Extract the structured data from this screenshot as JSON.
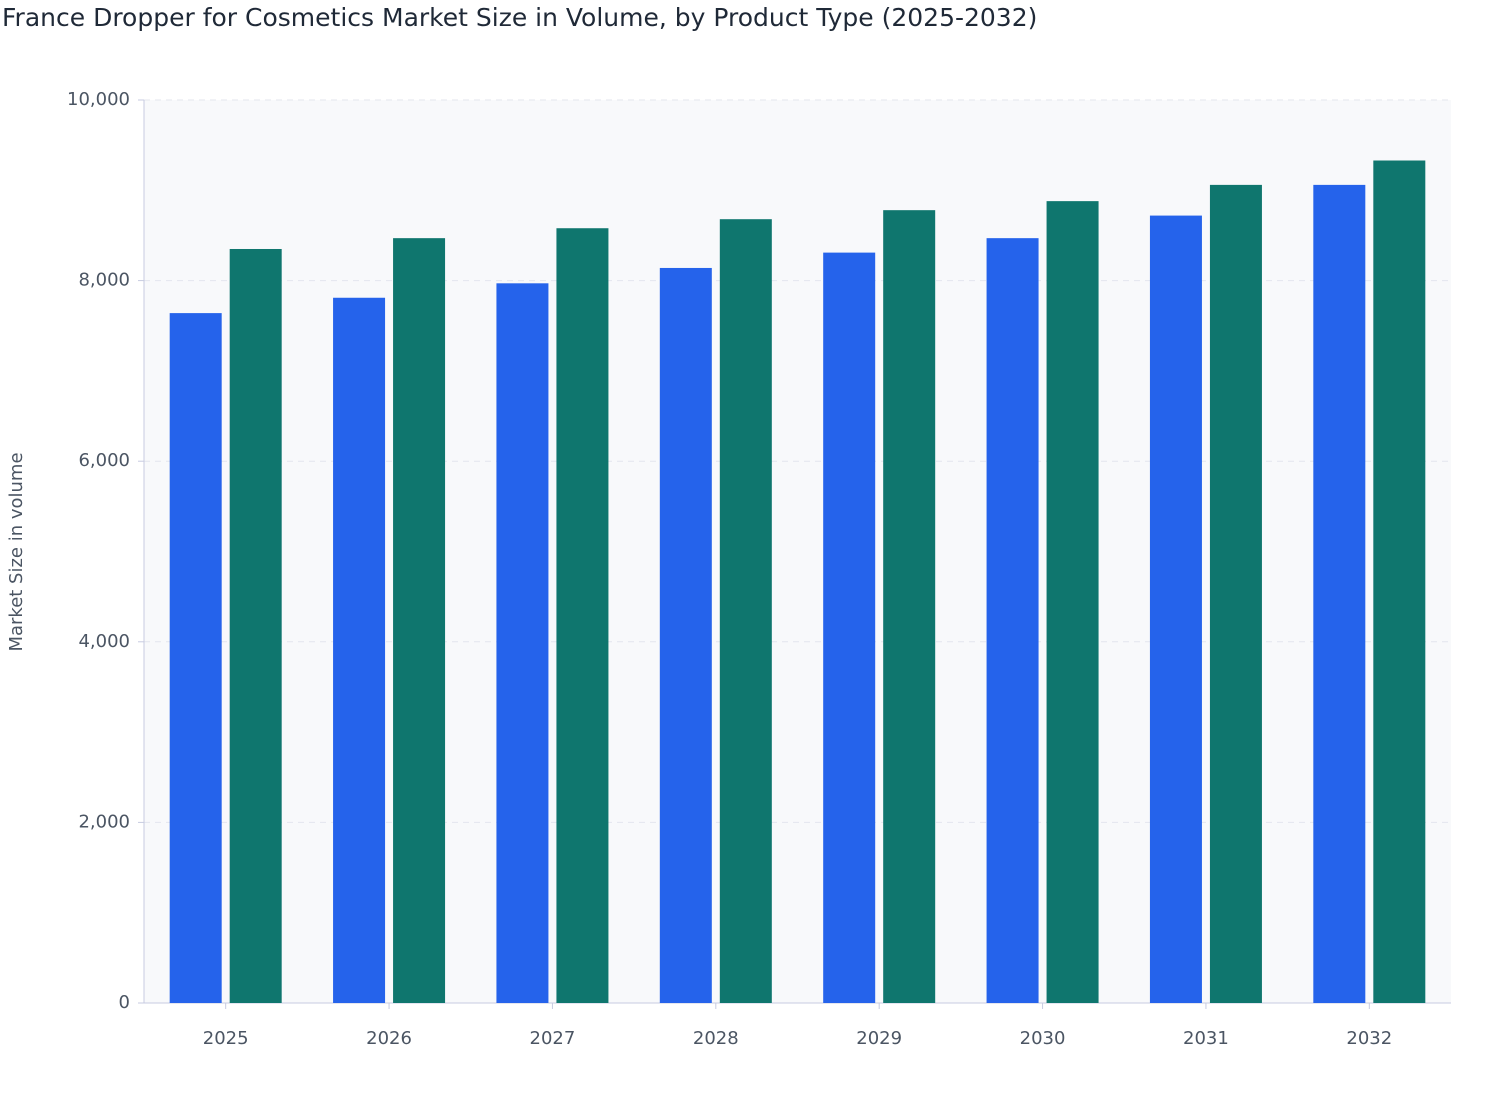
{
  "chart_data": {
    "type": "bar",
    "title": "France Dropper for Cosmetics Market Size in Volume, by Product Type (2025-2032)",
    "y_label": "Market Size in volume",
    "categories": [
      "2025",
      "2026",
      "2027",
      "2028",
      "2029",
      "2030",
      "2031",
      "2032"
    ],
    "series": [
      {
        "color": "#2563eb",
        "values": [
          7640,
          7810,
          7970,
          8140,
          8310,
          8470,
          8720,
          9060
        ]
      },
      {
        "color": "#0f766e",
        "values": [
          8350,
          8470,
          8580,
          8680,
          8780,
          8880,
          9060,
          9330
        ]
      }
    ],
    "ylim": [
      0,
      10000
    ],
    "yticks": [
      0,
      {
        "value": 2000,
        "label": "2,000"
      },
      {
        "value": 4000,
        "label": "4,000"
      },
      {
        "value": 6000,
        "label": "6,000"
      },
      {
        "value": 8000,
        "label": "8,000"
      },
      {
        "value": 10000,
        "label": "10,000"
      }
    ],
    "grid": true
  }
}
